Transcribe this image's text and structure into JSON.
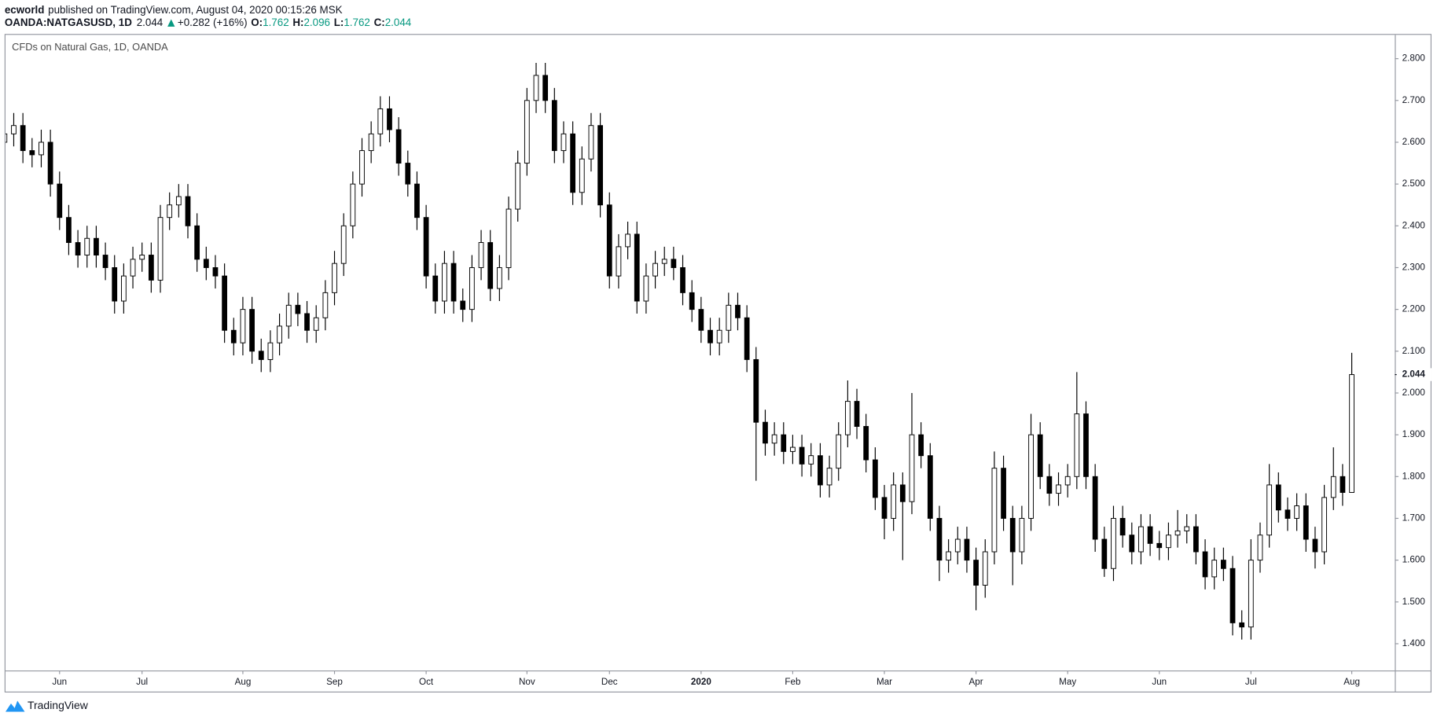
{
  "header": {
    "author": "ecworld",
    "published": "published on TradingView.com, August 04, 2020 00:15:26 MSK",
    "symbol": "OANDA:NATGASUSD, 1D",
    "change": "+0.282 (+16%)",
    "ohlc_labels": [
      "O:",
      "H:",
      "L:",
      "C:"
    ],
    "footer": "TradingView"
  },
  "chart_data": {
    "type": "candlestick",
    "title": "CFDs on Natural Gas, 1D, OANDA",
    "categories": [
      null,
      null,
      null,
      null,
      null,
      null,
      "Jun",
      null,
      null,
      null,
      null,
      null,
      null,
      null,
      null,
      "Jul",
      null,
      null,
      null,
      null,
      null,
      null,
      null,
      null,
      null,
      null,
      "Aug",
      null,
      null,
      null,
      null,
      null,
      null,
      null,
      null,
      null,
      "Sep",
      null,
      null,
      null,
      null,
      null,
      null,
      null,
      null,
      null,
      "Oct",
      null,
      null,
      null,
      null,
      null,
      null,
      null,
      null,
      null,
      null,
      "Nov",
      null,
      null,
      null,
      null,
      null,
      null,
      null,
      null,
      "Dec",
      null,
      null,
      null,
      null,
      null,
      null,
      null,
      null,
      null,
      "2020",
      null,
      null,
      null,
      null,
      null,
      null,
      null,
      null,
      null,
      "Feb",
      null,
      null,
      null,
      null,
      null,
      null,
      null,
      null,
      null,
      "Mar",
      null,
      null,
      null,
      null,
      null,
      null,
      null,
      null,
      null,
      "Apr",
      null,
      null,
      null,
      null,
      null,
      null,
      null,
      null,
      null,
      "May",
      null,
      null,
      null,
      null,
      null,
      null,
      null,
      null,
      null,
      "Jun",
      null,
      null,
      null,
      null,
      null,
      null,
      null,
      null,
      null,
      "Jul",
      null,
      null,
      null,
      null,
      null,
      null,
      null,
      null,
      null,
      null,
      "Aug"
    ],
    "open": [
      2.6,
      2.62,
      2.64,
      2.58,
      2.57,
      2.6,
      2.5,
      2.42,
      2.36,
      2.33,
      2.37,
      2.33,
      2.3,
      2.22,
      2.28,
      2.32,
      2.33,
      2.27,
      2.42,
      2.45,
      2.47,
      2.4,
      2.32,
      2.3,
      2.28,
      2.15,
      2.12,
      2.2,
      2.1,
      2.08,
      2.12,
      2.16,
      2.21,
      2.19,
      2.15,
      2.18,
      2.24,
      2.31,
      2.4,
      2.5,
      2.58,
      2.62,
      2.68,
      2.63,
      2.55,
      2.5,
      2.42,
      2.28,
      2.22,
      2.31,
      2.22,
      2.2,
      2.3,
      2.36,
      2.25,
      2.3,
      2.44,
      2.55,
      2.7,
      2.76,
      2.7,
      2.58,
      2.62,
      2.48,
      2.56,
      2.64,
      2.45,
      2.28,
      2.35,
      2.38,
      2.22,
      2.28,
      2.31,
      2.32,
      2.3,
      2.24,
      2.2,
      2.15,
      2.12,
      2.15,
      2.21,
      2.18,
      2.08,
      1.93,
      1.88,
      1.9,
      1.86,
      1.87,
      1.83,
      1.85,
      1.78,
      1.82,
      1.9,
      1.98,
      1.92,
      1.84,
      1.75,
      1.7,
      1.78,
      1.74,
      1.9,
      1.85,
      1.7,
      1.6,
      1.62,
      1.65,
      1.6,
      1.54,
      1.62,
      1.82,
      1.7,
      1.62,
      1.7,
      1.9,
      1.8,
      1.76,
      1.78,
      1.8,
      1.95,
      1.8,
      1.65,
      1.58,
      1.7,
      1.66,
      1.62,
      1.68,
      1.64,
      1.63,
      1.66,
      1.67,
      1.68,
      1.62,
      1.56,
      1.6,
      1.58,
      1.45,
      1.44,
      1.6,
      1.66,
      1.78,
      1.72,
      1.7,
      1.73,
      1.65,
      1.62,
      1.75,
      1.8,
      1.762
    ],
    "high": [
      2.65,
      2.67,
      2.67,
      2.61,
      2.63,
      2.63,
      2.53,
      2.45,
      2.39,
      2.4,
      2.4,
      2.36,
      2.33,
      2.31,
      2.35,
      2.36,
      2.36,
      2.45,
      2.48,
      2.5,
      2.5,
      2.43,
      2.35,
      2.33,
      2.31,
      2.18,
      2.23,
      2.23,
      2.13,
      2.15,
      2.19,
      2.24,
      2.24,
      2.22,
      2.21,
      2.27,
      2.34,
      2.43,
      2.53,
      2.61,
      2.65,
      2.71,
      2.71,
      2.66,
      2.58,
      2.53,
      2.45,
      2.31,
      2.34,
      2.34,
      2.25,
      2.33,
      2.39,
      2.39,
      2.33,
      2.47,
      2.58,
      2.73,
      2.79,
      2.79,
      2.73,
      2.65,
      2.65,
      2.59,
      2.67,
      2.67,
      2.48,
      2.38,
      2.41,
      2.41,
      2.31,
      2.34,
      2.35,
      2.35,
      2.33,
      2.27,
      2.23,
      2.18,
      2.18,
      2.24,
      2.24,
      2.21,
      2.11,
      1.96,
      1.93,
      1.93,
      1.9,
      1.9,
      1.88,
      1.88,
      1.85,
      1.93,
      2.03,
      2.01,
      1.95,
      1.87,
      1.78,
      1.81,
      1.81,
      2.0,
      1.93,
      1.88,
      1.73,
      1.65,
      1.68,
      1.68,
      1.63,
      1.65,
      1.86,
      1.85,
      1.73,
      1.73,
      1.95,
      1.93,
      1.83,
      1.81,
      1.83,
      2.05,
      1.98,
      1.83,
      1.68,
      1.73,
      1.73,
      1.69,
      1.71,
      1.71,
      1.67,
      1.69,
      1.72,
      1.71,
      1.71,
      1.65,
      1.63,
      1.63,
      1.61,
      1.48,
      1.65,
      1.69,
      1.83,
      1.81,
      1.75,
      1.76,
      1.76,
      1.68,
      1.78,
      1.87,
      1.83,
      2.096
    ],
    "low": [
      2.57,
      2.59,
      2.55,
      2.54,
      2.54,
      2.47,
      2.39,
      2.33,
      2.3,
      2.3,
      2.3,
      2.27,
      2.19,
      2.19,
      2.25,
      2.29,
      2.24,
      2.24,
      2.39,
      2.42,
      2.37,
      2.29,
      2.27,
      2.25,
      2.12,
      2.09,
      2.09,
      2.07,
      2.05,
      2.05,
      2.09,
      2.13,
      2.16,
      2.12,
      2.12,
      2.15,
      2.21,
      2.28,
      2.37,
      2.47,
      2.55,
      2.59,
      2.6,
      2.52,
      2.47,
      2.39,
      2.25,
      2.19,
      2.19,
      2.19,
      2.17,
      2.17,
      2.27,
      2.22,
      2.22,
      2.27,
      2.41,
      2.52,
      2.67,
      2.67,
      2.55,
      2.55,
      2.45,
      2.45,
      2.53,
      2.42,
      2.25,
      2.25,
      2.32,
      2.19,
      2.19,
      2.25,
      2.28,
      2.27,
      2.21,
      2.17,
      2.12,
      2.09,
      2.09,
      2.12,
      2.15,
      2.05,
      1.79,
      1.85,
      1.85,
      1.83,
      1.83,
      1.8,
      1.8,
      1.75,
      1.75,
      1.79,
      1.87,
      1.89,
      1.81,
      1.72,
      1.65,
      1.67,
      1.6,
      1.71,
      1.82,
      1.67,
      1.55,
      1.57,
      1.59,
      1.57,
      1.48,
      1.51,
      1.59,
      1.67,
      1.54,
      1.59,
      1.67,
      1.77,
      1.73,
      1.73,
      1.75,
      1.77,
      1.77,
      1.62,
      1.56,
      1.55,
      1.63,
      1.59,
      1.59,
      1.61,
      1.6,
      1.6,
      1.63,
      1.64,
      1.59,
      1.53,
      1.53,
      1.55,
      1.42,
      1.41,
      1.41,
      1.57,
      1.63,
      1.69,
      1.67,
      1.67,
      1.62,
      1.58,
      1.59,
      1.72,
      1.73,
      1.762
    ],
    "close": [
      2.62,
      2.64,
      2.58,
      2.57,
      2.6,
      2.5,
      2.42,
      2.36,
      2.33,
      2.37,
      2.33,
      2.3,
      2.22,
      2.28,
      2.32,
      2.33,
      2.27,
      2.42,
      2.45,
      2.47,
      2.4,
      2.32,
      2.3,
      2.28,
      2.15,
      2.12,
      2.2,
      2.1,
      2.08,
      2.12,
      2.16,
      2.21,
      2.19,
      2.15,
      2.18,
      2.24,
      2.31,
      2.4,
      2.5,
      2.58,
      2.62,
      2.68,
      2.63,
      2.55,
      2.5,
      2.42,
      2.28,
      2.22,
      2.31,
      2.22,
      2.2,
      2.3,
      2.36,
      2.25,
      2.3,
      2.44,
      2.55,
      2.7,
      2.76,
      2.7,
      2.58,
      2.62,
      2.48,
      2.56,
      2.64,
      2.45,
      2.28,
      2.35,
      2.38,
      2.22,
      2.28,
      2.31,
      2.32,
      2.3,
      2.24,
      2.2,
      2.15,
      2.12,
      2.15,
      2.21,
      2.18,
      2.08,
      1.93,
      1.88,
      1.9,
      1.86,
      1.87,
      1.83,
      1.85,
      1.78,
      1.82,
      1.9,
      1.98,
      1.92,
      1.84,
      1.75,
      1.7,
      1.78,
      1.74,
      1.9,
      1.85,
      1.7,
      1.6,
      1.62,
      1.65,
      1.6,
      1.54,
      1.62,
      1.82,
      1.7,
      1.62,
      1.7,
      1.9,
      1.8,
      1.76,
      1.78,
      1.8,
      1.95,
      1.8,
      1.65,
      1.58,
      1.7,
      1.66,
      1.62,
      1.68,
      1.64,
      1.63,
      1.66,
      1.67,
      1.68,
      1.62,
      1.56,
      1.6,
      1.58,
      1.45,
      1.44,
      1.6,
      1.66,
      1.78,
      1.72,
      1.7,
      1.73,
      1.65,
      1.62,
      1.75,
      1.8,
      1.762,
      2.044
    ],
    "up_color": "#ffffff",
    "down_color": "#000000",
    "wick_color": "#000000",
    "ylim": [
      1.336,
      2.857
    ],
    "yticks": [
      {
        "value": 1.4,
        "label": "1.400"
      },
      {
        "value": 1.5,
        "label": "1.500"
      },
      {
        "value": 1.6,
        "label": "1.600"
      },
      {
        "value": 1.7,
        "label": "1.700"
      },
      {
        "value": 1.8,
        "label": "1.800"
      },
      {
        "value": 1.9,
        "label": "1.900"
      },
      {
        "value": 2.0,
        "label": "2.000"
      },
      {
        "value": 2.1,
        "label": "2.100"
      },
      {
        "value": 2.2,
        "label": "2.200"
      },
      {
        "value": 2.3,
        "label": "2.300"
      },
      {
        "value": 2.4,
        "label": "2.400"
      },
      {
        "value": 2.5,
        "label": "2.500"
      },
      {
        "value": 2.6,
        "label": "2.600"
      },
      {
        "value": 2.7,
        "label": "2.700"
      },
      {
        "value": 2.8,
        "label": "2.800"
      }
    ],
    "grid": false
  }
}
